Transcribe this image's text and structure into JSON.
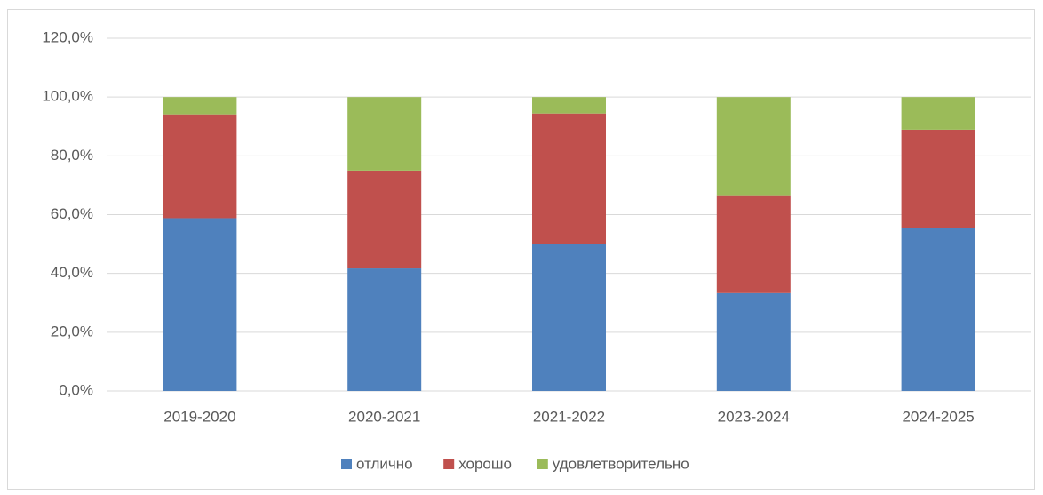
{
  "chart_data": {
    "type": "stacked_bar",
    "categories": [
      "2019-2020",
      "2020-2021",
      "2021-2022",
      "2023-2024",
      "2024-2025"
    ],
    "series": [
      {
        "name": "отлично",
        "color": "#4f81bd",
        "values": [
          58.8,
          41.7,
          50.0,
          33.3,
          55.6
        ]
      },
      {
        "name": "хорошо",
        "color": "#c0504d",
        "values": [
          35.3,
          33.3,
          44.4,
          33.3,
          33.3
        ]
      },
      {
        "name": "удовлетворительно",
        "color": "#9bbb59",
        "values": [
          5.9,
          25.0,
          5.6,
          33.4,
          11.1
        ]
      }
    ],
    "ylim": [
      0,
      120
    ],
    "yticks": [
      {
        "value": 0,
        "label": "0,0%"
      },
      {
        "value": 20,
        "label": "20,0%"
      },
      {
        "value": 40,
        "label": "40,0%"
      },
      {
        "value": 60,
        "label": "60,0%"
      },
      {
        "value": 80,
        "label": "80,0%"
      },
      {
        "value": 100,
        "label": "100,0%"
      },
      {
        "value": 120,
        "label": "120,0%"
      }
    ],
    "grid": true,
    "legend": "bottom"
  }
}
